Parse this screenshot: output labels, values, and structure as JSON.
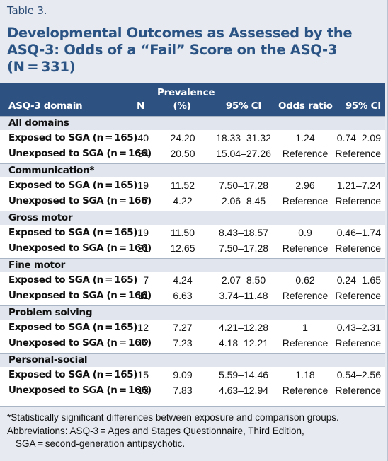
{
  "table_label": "Table 3.",
  "title_lines": [
    "Developmental Outcomes as Assessed by the",
    "ASQ-3: Odds of a “Fail” Score on the ASQ-3",
    "(N = 331)"
  ],
  "columns": {
    "domain": "ASQ-3 domain",
    "n": "N",
    "prevalence_line1": "Prevalence",
    "prevalence_line2": "(%)",
    "ci1": "95% CI",
    "odds_ratio": "Odds ratio",
    "ci2": "95% CI"
  },
  "groups": [
    {
      "name": "All domains",
      "rows": [
        {
          "label": "Exposed to SGA (n = 165)",
          "n": "40",
          "prevalence": "24.20",
          "ci": "18.33–31.32",
          "odds_ratio": "1.24",
          "or_ci": "0.74–2.09"
        },
        {
          "label": "Unexposed to SGA (n = 166)",
          "n": "34",
          "prevalence": "20.50",
          "ci": "15.04–27.26",
          "odds_ratio": "Reference",
          "or_ci": "Reference"
        }
      ]
    },
    {
      "name": "Communication*",
      "rows": [
        {
          "label": "Exposed to SGA (n = 165)",
          "n": "19",
          "prevalence": "11.52",
          "ci": "7.50–17.28",
          "odds_ratio": "2.96",
          "or_ci": "1.21–7.24"
        },
        {
          "label": "Unexposed to SGA (n = 166)",
          "n": "7",
          "prevalence": "4.22",
          "ci": "2.06–8.45",
          "odds_ratio": "Reference",
          "or_ci": "Reference"
        }
      ]
    },
    {
      "name": "Gross motor",
      "rows": [
        {
          "label": "Exposed to SGA (n = 165)",
          "n": "19",
          "prevalence": "11.50",
          "ci": "8.43–18.57",
          "odds_ratio": "0.9",
          "or_ci": "0.46–1.74"
        },
        {
          "label": "Unexposed to SGA (n = 166)",
          "n": "21",
          "prevalence": "12.65",
          "ci": "7.50–17.28",
          "odds_ratio": "Reference",
          "or_ci": "Reference"
        }
      ]
    },
    {
      "name": "Fine motor",
      "rows": [
        {
          "label": "Exposed to SGA (n = 165)",
          "n": "7",
          "prevalence": "4.24",
          "ci": "2.07–8.50",
          "odds_ratio": "0.62",
          "or_ci": "0.24–1.65"
        },
        {
          "label": "Unexposed to SGA (n = 166)",
          "n": "11",
          "prevalence": "6.63",
          "ci": "3.74–11.48",
          "odds_ratio": "Reference",
          "or_ci": "Reference"
        }
      ]
    },
    {
      "name": "Problem solving",
      "rows": [
        {
          "label": "Exposed to SGA (n = 165)",
          "n": "12",
          "prevalence": "7.27",
          "ci": "4.21–12.28",
          "odds_ratio": "1",
          "or_ci": "0.43–2.31"
        },
        {
          "label": "Unexposed to SGA (n = 166)",
          "n": "12",
          "prevalence": "7.23",
          "ci": "4.18–12.21",
          "odds_ratio": "Reference",
          "or_ci": "Reference"
        }
      ]
    },
    {
      "name": "Personal-social",
      "rows": [
        {
          "label": "Exposed to SGA (n = 165)",
          "n": "15",
          "prevalence": "9.09",
          "ci": "5.59–14.46",
          "odds_ratio": "1.18",
          "or_ci": "0.54–2.56"
        },
        {
          "label": "Unexposed to SGA (n = 166)",
          "n": "13",
          "prevalence": "7.83",
          "ci": "4.63–12.94",
          "odds_ratio": "Reference",
          "or_ci": "Reference"
        }
      ]
    }
  ],
  "footnotes": {
    "significance": "*Statistically significant differences between exposure and comparison groups.",
    "abbreviations_line1": "Abbreviations: ASQ-3 = Ages and Stages Questionnaire, Third Edition,",
    "abbreviations_line2": "SGA = second-generation antipsychotic."
  },
  "colors": {
    "header_background": "#2d5282",
    "title_text": "#2b5484",
    "panel_background": "#e7ebf1",
    "group_row_background": "#e1e6ee"
  }
}
